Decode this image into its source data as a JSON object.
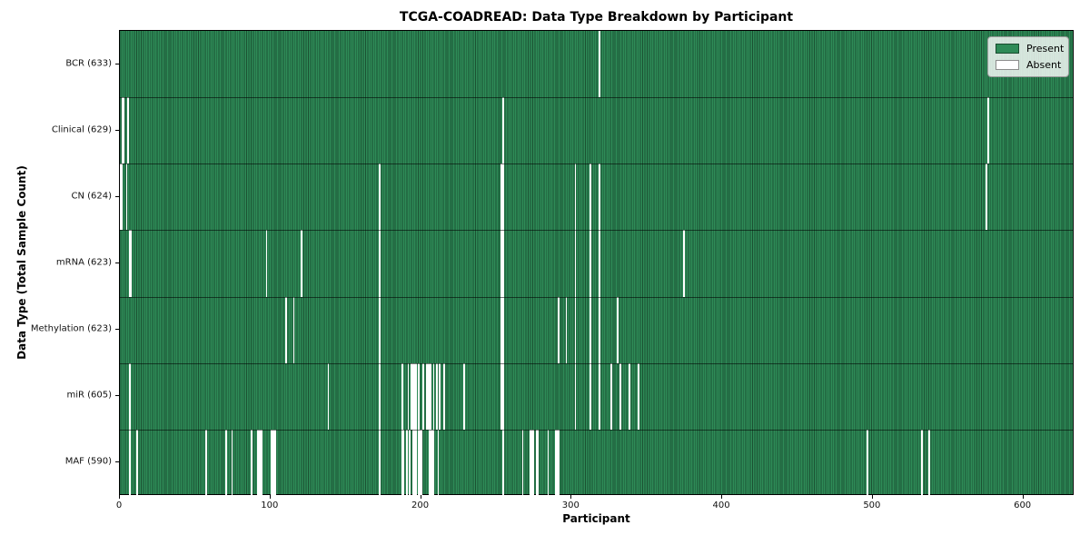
{
  "chart_data": {
    "type": "heatmap",
    "title": "TCGA-COADREAD: Data Type Breakdown by Participant",
    "xlabel": "Participant",
    "ylabel": "Data Type (Total Sample Count)",
    "x_ticks": [
      0,
      100,
      200,
      300,
      400,
      500,
      600
    ],
    "x_range": [
      0,
      634
    ],
    "n_participants": 634,
    "grid": false,
    "legend_position": "upper right",
    "legend_entries": [
      {
        "label": "Present",
        "color": "#2e8b57"
      },
      {
        "label": "Absent",
        "color": "#ffffff"
      }
    ],
    "colors": {
      "present": "#2e8b57",
      "absent": "#ffffff",
      "bar_edge": "rgba(0,0,0,0.42)",
      "spine": "#000000"
    },
    "rows": [
      {
        "label": "BCR (633)",
        "name": "BCR",
        "total": 633,
        "absent": [
          318
        ]
      },
      {
        "label": "Clinical (629)",
        "name": "Clinical",
        "total": 629,
        "absent": [
          1,
          2,
          5,
          254,
          576
        ]
      },
      {
        "label": "CN (624)",
        "name": "CN",
        "total": 624,
        "absent": [
          0,
          1,
          4,
          172,
          253,
          254,
          302,
          312,
          318,
          575
        ]
      },
      {
        "label": "mRNA (623)",
        "name": "mRNA",
        "total": 623,
        "absent": [
          6,
          7,
          97,
          120,
          172,
          253,
          254,
          302,
          312,
          318,
          374
        ]
      },
      {
        "label": "Methylation (623)",
        "name": "Methylation",
        "total": 623,
        "absent": [
          110,
          115,
          172,
          253,
          254,
          291,
          296,
          302,
          312,
          318,
          330
        ]
      },
      {
        "label": "miR (605)",
        "name": "miR",
        "total": 605,
        "absent": [
          6,
          138,
          172,
          187,
          191,
          193,
          194,
          195,
          196,
          198,
          201,
          203,
          204,
          205,
          206,
          208,
          210,
          212,
          215,
          228,
          253,
          254,
          302,
          312,
          318,
          326,
          332,
          338,
          344
        ]
      },
      {
        "label": "MAF (590)",
        "name": "MAF",
        "total": 590,
        "absent": [
          6,
          11,
          57,
          70,
          74,
          87,
          91,
          92,
          93,
          94,
          100,
          101,
          102,
          103,
          172,
          187,
          188,
          190,
          192,
          194,
          195,
          196,
          198,
          199,
          200,
          205,
          206,
          207,
          208,
          211,
          254,
          267,
          272,
          273,
          274,
          276,
          277,
          284,
          289,
          290,
          291,
          496,
          532,
          537
        ]
      }
    ]
  }
}
